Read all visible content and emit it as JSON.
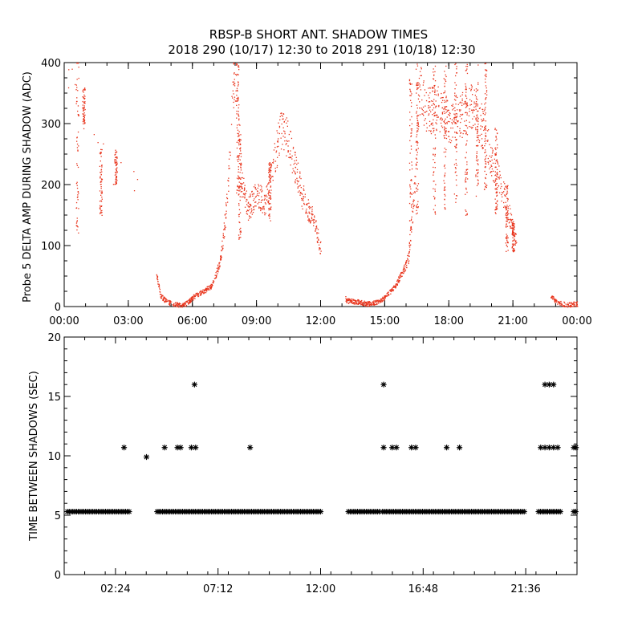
{
  "title": {
    "line1": "RBSP-B SHORT ANT. SHADOW TIMES",
    "line2": "2018 290 (10/17) 12:30 to 2018 291 (10/18) 12:30"
  },
  "colors": {
    "top_points": "#e8341c",
    "bottom_points": "#000000"
  },
  "chart_data": [
    {
      "type": "scatter",
      "name": "top",
      "ylabel": "Probe 5 DELTA AMP DURING SHADOW (ADC)",
      "xlabel": "",
      "x_unit": "hours",
      "xlim": [
        0,
        24
      ],
      "ylim": [
        0,
        400
      ],
      "xticks": [
        {
          "v": 0,
          "label": "00:00"
        },
        {
          "v": 3,
          "label": "03:00"
        },
        {
          "v": 6,
          "label": "06:00"
        },
        {
          "v": 9,
          "label": "09:00"
        },
        {
          "v": 12,
          "label": "12:00"
        },
        {
          "v": 15,
          "label": "15:00"
        },
        {
          "v": 18,
          "label": "18:00"
        },
        {
          "v": 21,
          "label": "21:00"
        },
        {
          "v": 24,
          "label": "00:00"
        }
      ],
      "yticks": [
        {
          "v": 0,
          "label": "0"
        },
        {
          "v": 100,
          "label": "100"
        },
        {
          "v": 200,
          "label": "200"
        },
        {
          "v": 300,
          "label": "300"
        },
        {
          "v": 400,
          "label": "400"
        }
      ],
      "profile": [
        [
          0.0,
          385
        ],
        [
          0.3,
          380
        ],
        [
          0.8,
          330
        ],
        [
          1.5,
          270
        ],
        [
          2.2,
          230
        ],
        [
          2.9,
          210
        ],
        [
          3.4,
          205
        ],
        [
          4.35,
          45
        ],
        [
          4.5,
          18
        ],
        [
          4.8,
          8
        ],
        [
          5.2,
          4
        ],
        [
          5.5,
          2
        ],
        [
          5.8,
          8
        ],
        [
          6.1,
          18
        ],
        [
          6.5,
          25
        ],
        [
          6.9,
          35
        ],
        [
          7.3,
          75
        ],
        [
          7.6,
          170
        ],
        [
          7.8,
          300
        ],
        [
          7.95,
          385
        ],
        [
          8.05,
          340
        ],
        [
          8.3,
          200
        ],
        [
          8.6,
          160
        ],
        [
          9.0,
          185
        ],
        [
          9.4,
          170
        ],
        [
          9.8,
          235
        ],
        [
          10.1,
          290
        ],
        [
          10.4,
          280
        ],
        [
          10.8,
          230
        ],
        [
          11.1,
          185
        ],
        [
          11.4,
          160
        ],
        [
          11.7,
          140
        ],
        [
          11.95,
          100
        ],
        [
          13.2,
          10
        ],
        [
          13.8,
          8
        ],
        [
          14.2,
          5
        ],
        [
          14.6,
          8
        ],
        [
          15.0,
          15
        ],
        [
          15.5,
          35
        ],
        [
          16.1,
          80
        ],
        [
          16.4,
          200
        ],
        [
          16.6,
          360
        ],
        [
          17.0,
          320
        ],
        [
          17.5,
          330
        ],
        [
          18.0,
          300
        ],
        [
          18.5,
          310
        ],
        [
          19.0,
          330
        ],
        [
          19.5,
          300
        ],
        [
          20.0,
          240
        ],
        [
          20.3,
          210
        ],
        [
          20.6,
          180
        ],
        [
          20.9,
          140
        ],
        [
          21.1,
          110
        ],
        [
          22.8,
          15
        ],
        [
          23.1,
          7
        ],
        [
          23.5,
          3
        ],
        [
          24.0,
          5
        ]
      ],
      "scatter_ranges": [
        [
          0.6,
          110,
          410
        ],
        [
          0.9,
          300,
          360
        ],
        [
          1.7,
          150,
          260
        ],
        [
          2.4,
          200,
          260
        ],
        [
          8.1,
          180,
          400
        ],
        [
          8.2,
          110,
          300
        ],
        [
          9.6,
          140,
          240
        ],
        [
          16.2,
          100,
          380
        ],
        [
          16.5,
          150,
          400
        ],
        [
          17.3,
          150,
          400
        ],
        [
          17.8,
          160,
          400
        ],
        [
          18.3,
          170,
          400
        ],
        [
          18.8,
          150,
          400
        ],
        [
          19.3,
          180,
          400
        ],
        [
          19.7,
          190,
          400
        ],
        [
          20.2,
          150,
          300
        ],
        [
          20.7,
          90,
          200
        ],
        [
          21.0,
          90,
          140
        ]
      ]
    },
    {
      "type": "scatter",
      "name": "bottom",
      "ylabel": "TIME BETWEEN SHADOWS (SEC)",
      "xlabel": "",
      "x_unit": "hours",
      "xlim": [
        0,
        24
      ],
      "ylim": [
        0,
        20
      ],
      "xticks": [
        {
          "v": 2.4,
          "label": "02:24"
        },
        {
          "v": 7.2,
          "label": "07:12"
        },
        {
          "v": 12.0,
          "label": "12:00"
        },
        {
          "v": 16.8,
          "label": "16:48"
        },
        {
          "v": 21.6,
          "label": "21:36"
        }
      ],
      "yticks": [
        {
          "v": 0,
          "label": "0"
        },
        {
          "v": 5,
          "label": "5"
        },
        {
          "v": 10,
          "label": "10"
        },
        {
          "v": 15,
          "label": "15"
        },
        {
          "v": 20,
          "label": "20"
        }
      ],
      "baseline_value": 5.3,
      "baseline_segments": [
        [
          0.15,
          3.05
        ],
        [
          4.35,
          12.05
        ],
        [
          13.3,
          14.8
        ],
        [
          14.9,
          21.6
        ],
        [
          22.2,
          23.3
        ],
        [
          23.85,
          24.0
        ]
      ],
      "points": [
        [
          2.8,
          10.7
        ],
        [
          3.85,
          9.9
        ],
        [
          4.7,
          10.7
        ],
        [
          5.3,
          10.7
        ],
        [
          5.45,
          10.7
        ],
        [
          5.95,
          10.7
        ],
        [
          6.15,
          10.7
        ],
        [
          6.1,
          16.0
        ],
        [
          8.7,
          10.7
        ],
        [
          14.95,
          10.7
        ],
        [
          14.95,
          16.0
        ],
        [
          15.35,
          10.7
        ],
        [
          15.55,
          10.7
        ],
        [
          16.25,
          10.7
        ],
        [
          16.45,
          10.7
        ],
        [
          17.9,
          10.7
        ],
        [
          18.5,
          10.7
        ],
        [
          22.3,
          10.7
        ],
        [
          22.5,
          10.7
        ],
        [
          22.7,
          10.7
        ],
        [
          22.9,
          10.7
        ],
        [
          23.1,
          10.7
        ],
        [
          22.5,
          16.0
        ],
        [
          22.7,
          16.0
        ],
        [
          22.9,
          16.0
        ],
        [
          23.85,
          10.7
        ],
        [
          23.95,
          10.7
        ]
      ]
    }
  ]
}
